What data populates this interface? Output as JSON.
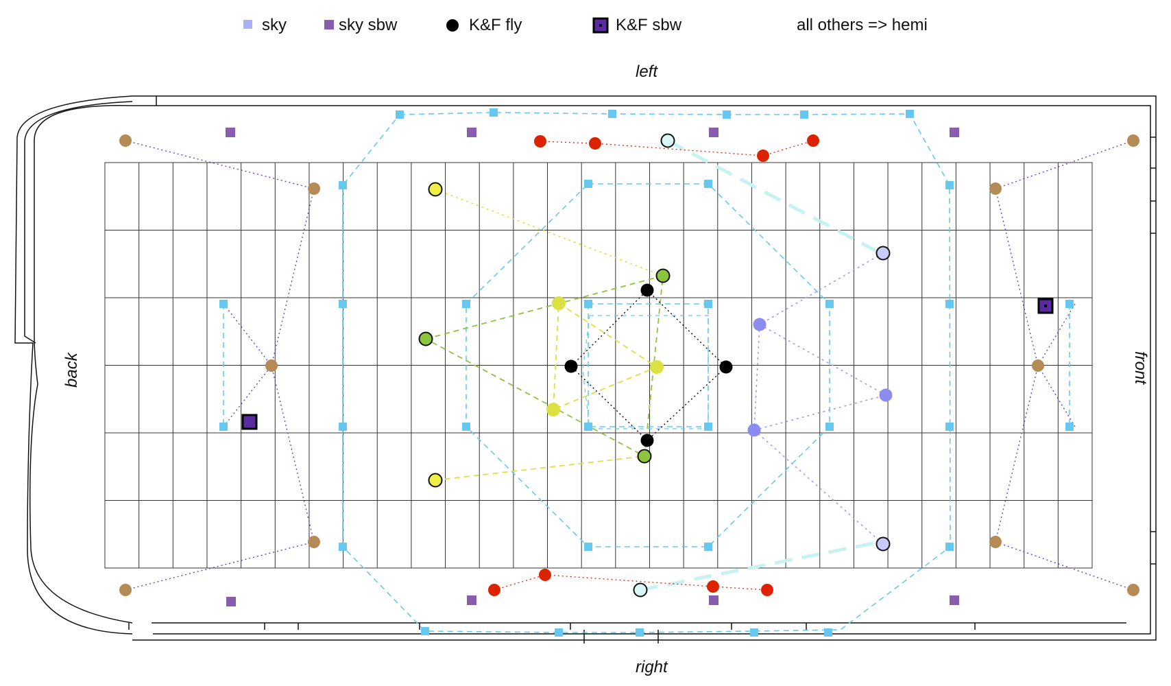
{
  "legend": {
    "sky": "sky",
    "sky_sbw": "sky sbw",
    "kf_fly": "K&F fly",
    "kf_sbw": "K&F sbw",
    "note": "all others => hemi"
  },
  "sides": {
    "left": "left",
    "right": "right",
    "back": "back",
    "front": "front"
  },
  "colors": {
    "sky": "#66c8ee",
    "sky_sbw": "#8a5cae",
    "kf_fly": "#000000",
    "kf_sbw": "#5a2aa0",
    "tan": "#b48a55",
    "red": "#dd2200",
    "yellow": "#dce040",
    "green": "#8cc43c",
    "lavender": "#8c8cf0",
    "pale_cyan": "#c8f2f2",
    "legend_sky": "#aab0f4"
  }
}
